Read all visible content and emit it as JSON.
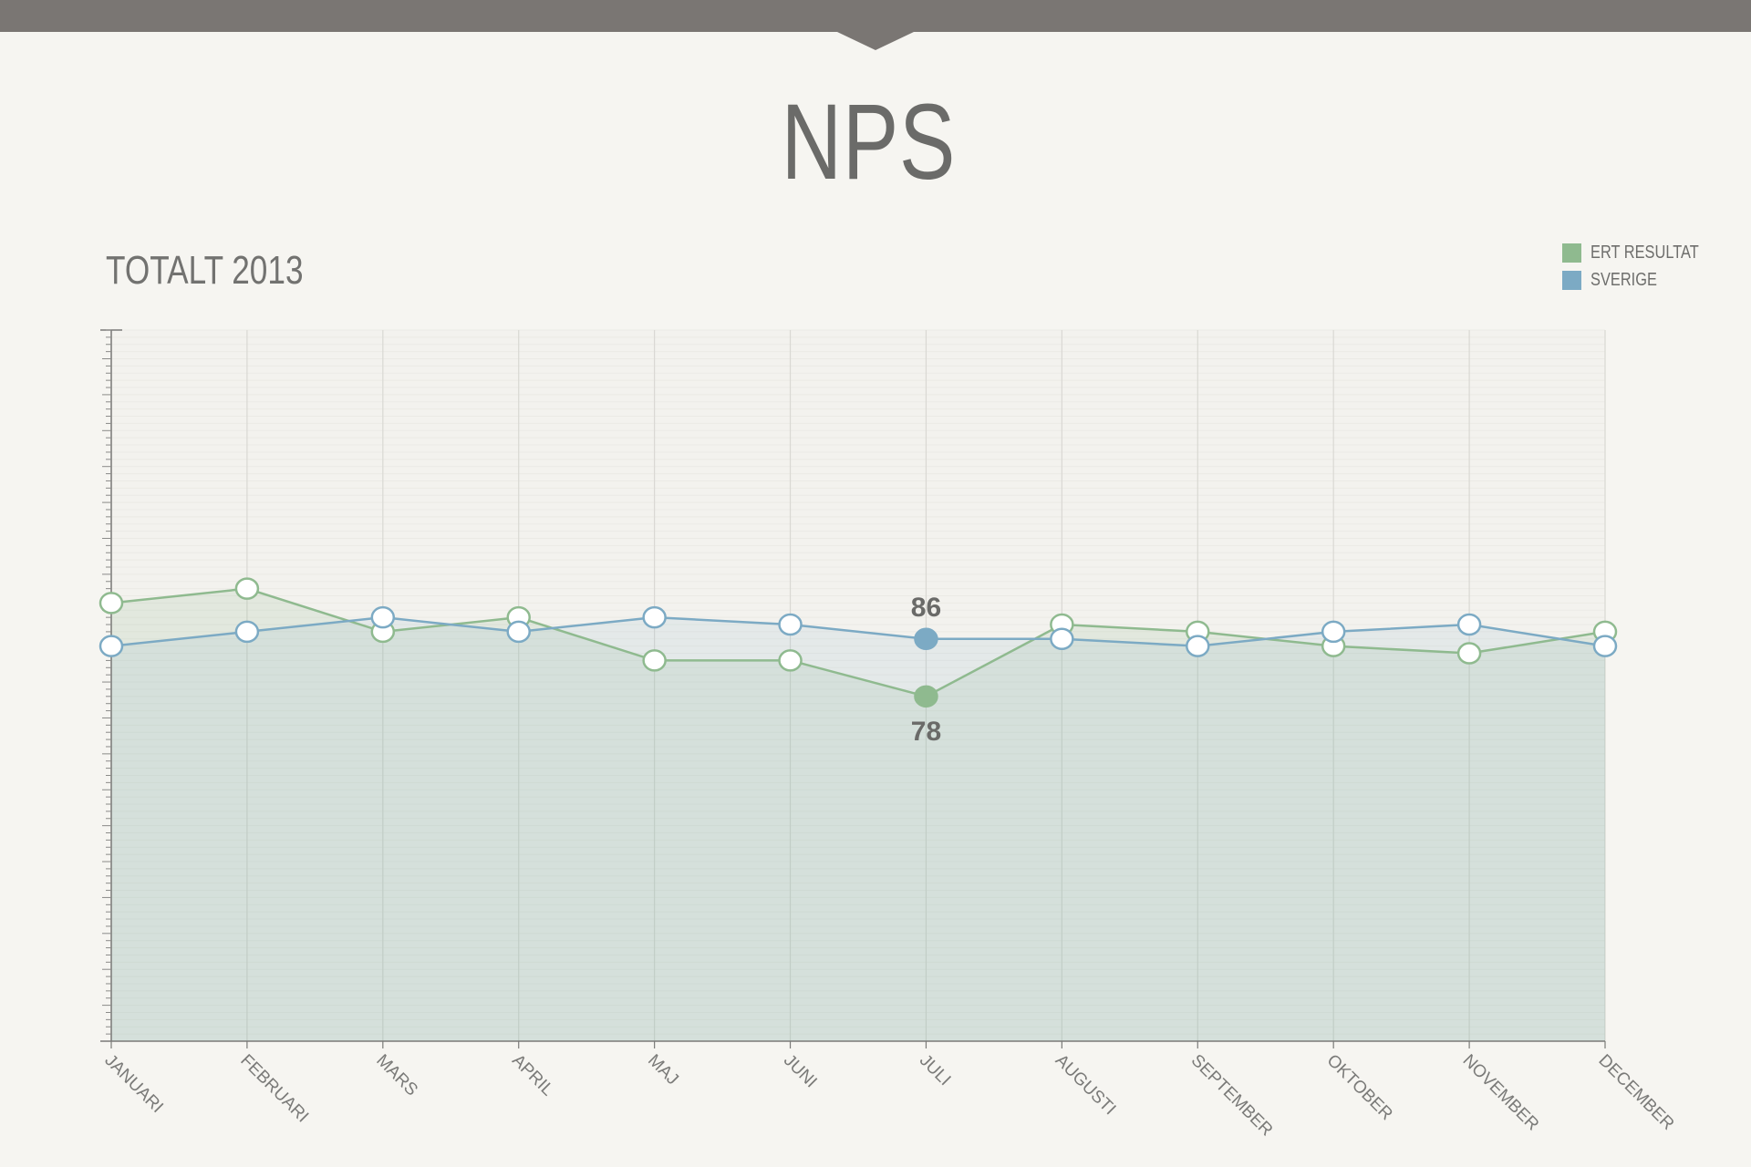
{
  "page": {
    "title": "NPS"
  },
  "chart_data": {
    "type": "line",
    "title": "TOTALT 2013",
    "categories": [
      "JANUARI",
      "FEBRUARI",
      "MARS",
      "APRIL",
      "MAJ",
      "JUNI",
      "JULI",
      "AUGUSTI",
      "SEPTEMBER",
      "OKTOBER",
      "NOVEMBER",
      "DECEMBER"
    ],
    "series": [
      {
        "name": "ERT RESULTAT",
        "color": "#8fba8f",
        "values": [
          91,
          93,
          87,
          89,
          83,
          83,
          78,
          88,
          87,
          85,
          84,
          87
        ]
      },
      {
        "name": "SVERIGE",
        "color": "#7caac4",
        "values": [
          85,
          87,
          89,
          87,
          89,
          88,
          86,
          86,
          85,
          87,
          88,
          85
        ]
      }
    ],
    "highlight": {
      "category": "JULI",
      "labels": [
        {
          "series": "SVERIGE",
          "value": "86"
        },
        {
          "series": "ERT RESULTAT",
          "value": "78"
        }
      ]
    },
    "ylim": [
      30,
      129
    ],
    "legend_position": "top-right",
    "grid": true,
    "area_fill": true
  }
}
